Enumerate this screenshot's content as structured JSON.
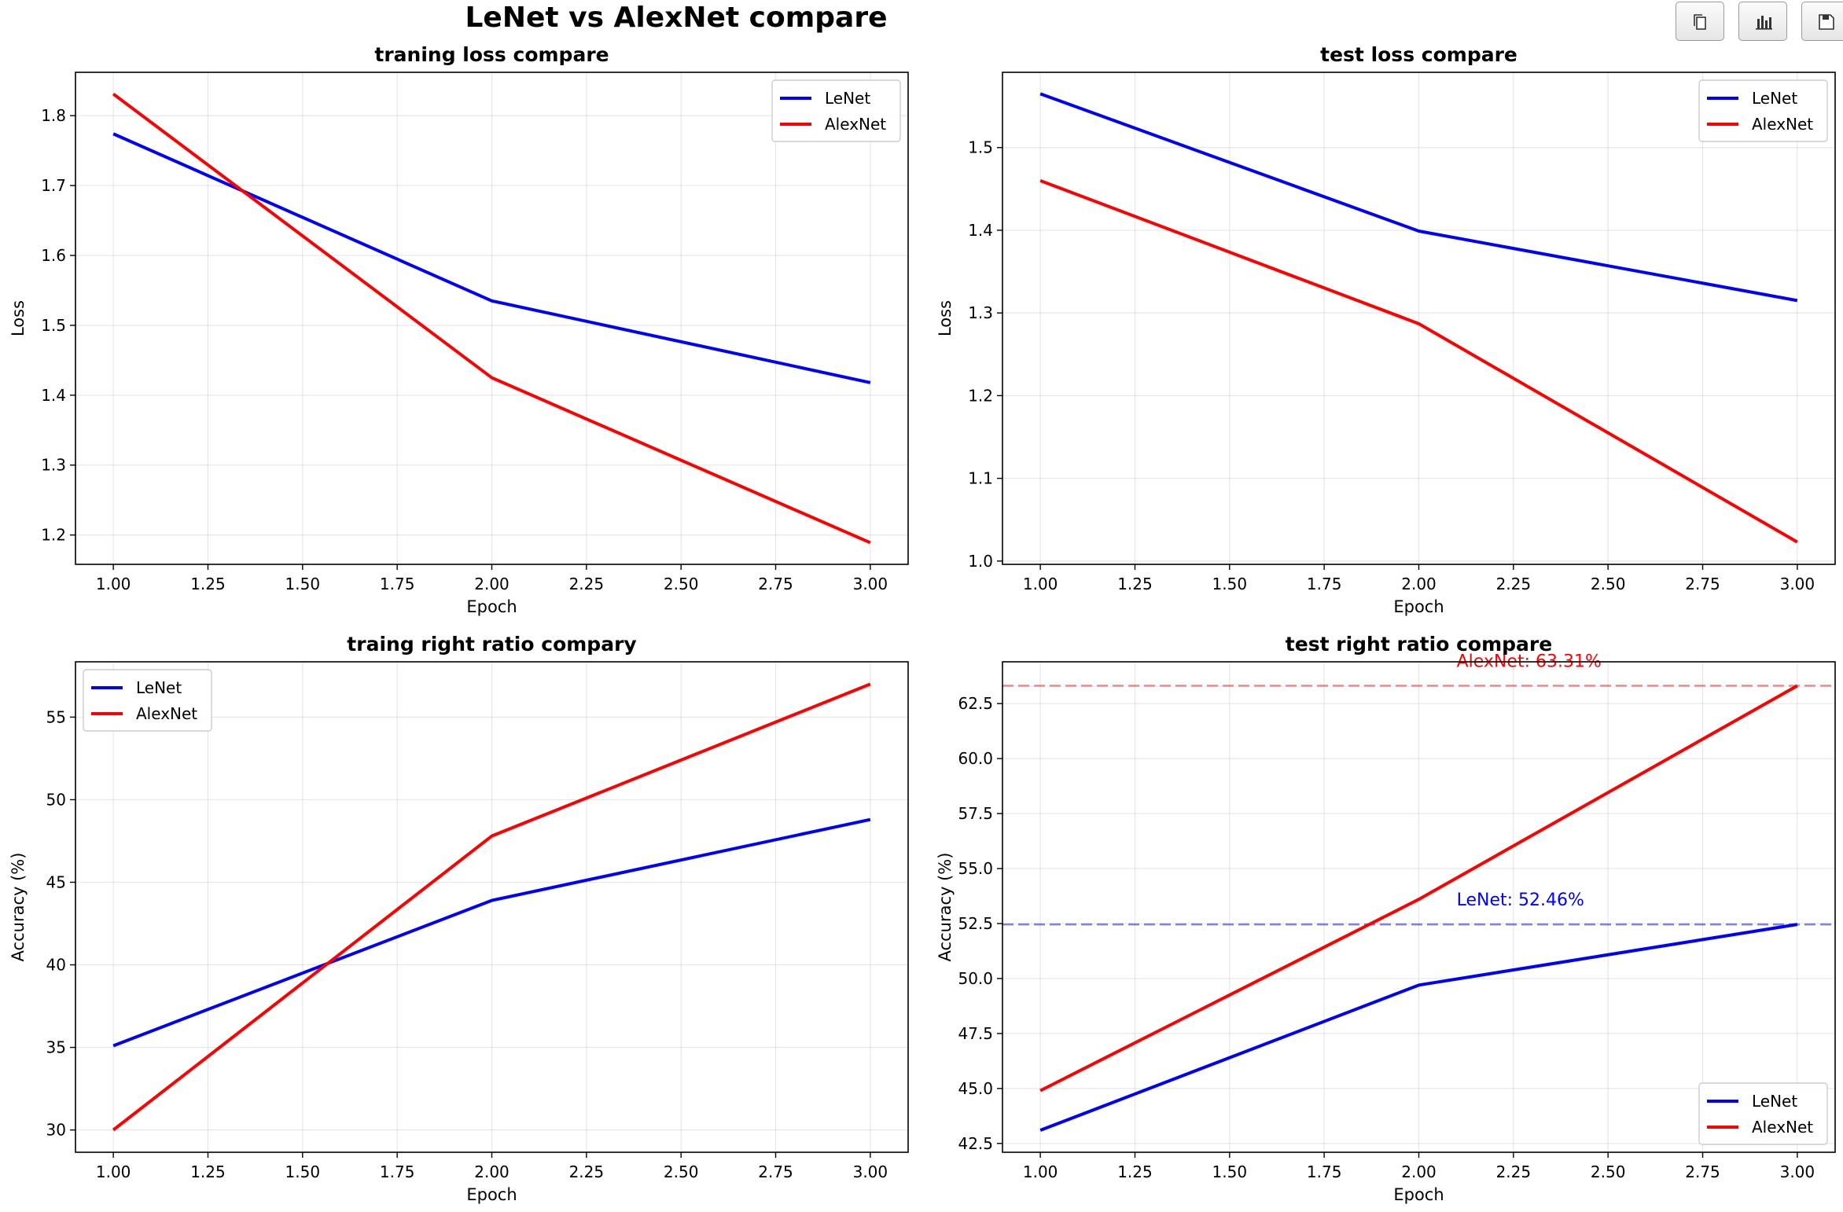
{
  "chart_data": [
    {
      "type": "line",
      "title": "traning loss compare",
      "xlabel": "Epoch",
      "ylabel": "Loss",
      "x": [
        1,
        2,
        3
      ],
      "xlim": [
        0.9,
        3.1
      ],
      "ylim": [
        1.158,
        1.862
      ],
      "xticks": [
        1.0,
        1.25,
        1.5,
        1.75,
        2.0,
        2.25,
        2.5,
        2.75,
        3.0
      ],
      "xtick_labels": [
        "1.00",
        "1.25",
        "1.50",
        "1.75",
        "2.00",
        "2.25",
        "2.50",
        "2.75",
        "3.00"
      ],
      "yticks": [
        1.2,
        1.3,
        1.4,
        1.5,
        1.6,
        1.7,
        1.8
      ],
      "ytick_labels": [
        "1.2",
        "1.3",
        "1.4",
        "1.5",
        "1.6",
        "1.7",
        "1.8"
      ],
      "grid": true,
      "legend": "upper right",
      "series": [
        {
          "name": "LeNet",
          "color": "#0000ff",
          "values": [
            1.774,
            1.535,
            1.418
          ]
        },
        {
          "name": "AlexNet",
          "color": "#ff0000",
          "values": [
            1.831,
            1.425,
            1.189
          ]
        }
      ]
    },
    {
      "type": "line",
      "title": "test loss compare",
      "xlabel": "Epoch",
      "ylabel": "Loss",
      "x": [
        1,
        2,
        3
      ],
      "xlim": [
        0.9,
        3.1
      ],
      "ylim": [
        0.996,
        1.591
      ],
      "xticks": [
        1.0,
        1.25,
        1.5,
        1.75,
        2.0,
        2.25,
        2.5,
        2.75,
        3.0
      ],
      "xtick_labels": [
        "1.00",
        "1.25",
        "1.50",
        "1.75",
        "2.00",
        "2.25",
        "2.50",
        "2.75",
        "3.00"
      ],
      "yticks": [
        1.0,
        1.1,
        1.2,
        1.3,
        1.4,
        1.5
      ],
      "ytick_labels": [
        "1.0",
        "1.1",
        "1.2",
        "1.3",
        "1.4",
        "1.5"
      ],
      "grid": true,
      "legend": "upper right",
      "series": [
        {
          "name": "LeNet",
          "color": "#0000ff",
          "values": [
            1.565,
            1.399,
            1.315
          ]
        },
        {
          "name": "AlexNet",
          "color": "#ff0000",
          "values": [
            1.46,
            1.287,
            1.023
          ]
        }
      ]
    },
    {
      "type": "line",
      "title": "traing right ratio compary",
      "xlabel": "Epoch",
      "ylabel": "Accuracy (%)",
      "x": [
        1,
        2,
        3
      ],
      "xlim": [
        0.9,
        3.1
      ],
      "ylim": [
        28.65,
        58.35
      ],
      "xticks": [
        1.0,
        1.25,
        1.5,
        1.75,
        2.0,
        2.25,
        2.5,
        2.75,
        3.0
      ],
      "xtick_labels": [
        "1.00",
        "1.25",
        "1.50",
        "1.75",
        "2.00",
        "2.25",
        "2.50",
        "2.75",
        "3.00"
      ],
      "yticks": [
        30,
        35,
        40,
        45,
        50,
        55
      ],
      "ytick_labels": [
        "30",
        "35",
        "40",
        "45",
        "50",
        "55"
      ],
      "grid": true,
      "legend": "upper left",
      "series": [
        {
          "name": "LeNet",
          "color": "#0000ff",
          "values": [
            35.1,
            43.9,
            48.8
          ]
        },
        {
          "name": "AlexNet",
          "color": "#ff0000",
          "values": [
            30.0,
            47.8,
            57.0
          ]
        }
      ]
    },
    {
      "type": "line",
      "title": "test right ratio compare",
      "xlabel": "Epoch",
      "ylabel": "Accuracy (%)",
      "x": [
        1,
        2,
        3
      ],
      "xlim": [
        0.9,
        3.1
      ],
      "ylim": [
        42.1,
        64.4
      ],
      "xticks": [
        1.0,
        1.25,
        1.5,
        1.75,
        2.0,
        2.25,
        2.5,
        2.75,
        3.0
      ],
      "xtick_labels": [
        "1.00",
        "1.25",
        "1.50",
        "1.75",
        "2.00",
        "2.25",
        "2.50",
        "2.75",
        "3.00"
      ],
      "yticks": [
        42.5,
        45.0,
        47.5,
        50.0,
        52.5,
        55.0,
        57.5,
        60.0,
        62.5
      ],
      "ytick_labels": [
        "42.5",
        "45.0",
        "47.5",
        "50.0",
        "52.5",
        "55.0",
        "57.5",
        "60.0",
        "62.5"
      ],
      "grid": true,
      "legend": "lower right",
      "series": [
        {
          "name": "LeNet",
          "color": "#0000ff",
          "values": [
            43.1,
            49.7,
            52.46
          ]
        },
        {
          "name": "AlexNet",
          "color": "#ff0000",
          "values": [
            44.9,
            53.6,
            63.31
          ]
        }
      ],
      "reference_lines": [
        {
          "series": "LeNet",
          "value": 52.46,
          "label": "LeNet: 52.46%",
          "label_x": 2.1,
          "color": "#0000ff"
        },
        {
          "series": "AlexNet",
          "value": 63.31,
          "label": "AlexNet: 63.31%",
          "label_x": 2.1,
          "color": "#ff0000"
        }
      ]
    }
  ],
  "figure": {
    "title": "LeNet vs AlexNet compare"
  },
  "toolbar": {
    "buttons": [
      {
        "name": "copy-button",
        "icon": "copy-icon"
      },
      {
        "name": "chart-button",
        "icon": "bar-chart-icon"
      },
      {
        "name": "save-button",
        "icon": "save-icon"
      }
    ]
  }
}
